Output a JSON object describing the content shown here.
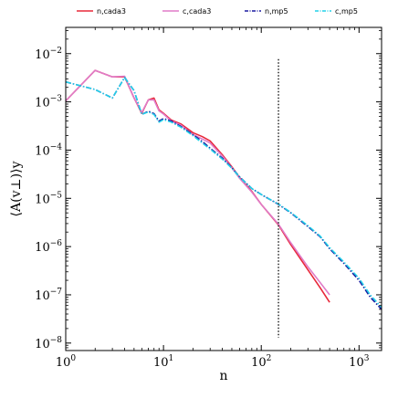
{
  "chart_data": {
    "type": "line",
    "xlabel": "n",
    "ylabel": "⟨A(v⊥)⟩y",
    "x_scale": "log",
    "y_scale": "log",
    "xlim": [
      1,
      1700
    ],
    "ylim": [
      7e-09,
      0.035
    ],
    "x_ticks": [
      1,
      10,
      100,
      1000
    ],
    "x_tick_labels": [
      "10^0",
      "10^1",
      "10^2",
      "10^3"
    ],
    "y_ticks": [
      1e-08,
      1e-07,
      1e-06,
      1e-05,
      0.0001,
      0.001,
      0.01
    ],
    "y_tick_labels": [
      "10^-8",
      "10^-7",
      "10^-6",
      "10^-5",
      "10^-4",
      "10^-3",
      "10^-2"
    ],
    "grid": false,
    "legend_position": "top",
    "vline": {
      "x": 150,
      "style": "dotted"
    },
    "series": [
      {
        "name": "n,cada3",
        "color": "#e8283a",
        "style": "solid",
        "x": [
          1,
          2,
          3,
          4,
          5,
          6,
          7,
          8,
          9,
          10,
          12,
          15,
          20,
          25,
          30,
          40,
          50,
          60,
          80,
          100,
          150,
          200,
          300,
          400,
          500
        ],
        "y": [
          0.00105,
          0.0045,
          0.0033,
          0.0033,
          0.0012,
          0.00058,
          0.0011,
          0.0012,
          0.00068,
          0.00058,
          0.00042,
          0.00035,
          0.00023,
          0.00019,
          0.000155,
          8e-05,
          4.5e-05,
          2.7e-05,
          1.4e-05,
          7.5e-06,
          2.8e-06,
          1.1e-06,
          3.3e-07,
          1.4e-07,
          7e-08
        ]
      },
      {
        "name": "c,cada3",
        "color": "#e07bc8",
        "style": "solid",
        "x": [
          1,
          2,
          3,
          4,
          5,
          6,
          7,
          8,
          9,
          10,
          12,
          15,
          20,
          25,
          30,
          40,
          50,
          60,
          80,
          100,
          150,
          200,
          300,
          400,
          500
        ],
        "y": [
          0.00105,
          0.0045,
          0.0033,
          0.0034,
          0.0012,
          0.0006,
          0.0011,
          0.0011,
          0.00065,
          0.00056,
          0.0004,
          0.00033,
          0.00021,
          0.00017,
          0.00014,
          7.5e-05,
          4.3e-05,
          2.6e-05,
          1.35e-05,
          7.5e-06,
          2.9e-06,
          1.2e-06,
          3.8e-07,
          1.8e-07,
          1e-07
        ]
      },
      {
        "name": "n,mp5",
        "color": "#1a1aa0",
        "style": "dashdot",
        "x": [
          1,
          2,
          3,
          4,
          5,
          6,
          7,
          8,
          9,
          10,
          12,
          15,
          20,
          25,
          30,
          40,
          50,
          60,
          80,
          100,
          150,
          200,
          300,
          400,
          500,
          700,
          1000,
          1300,
          1700
        ],
        "y": [
          0.0026,
          0.0018,
          0.0012,
          0.0032,
          0.0017,
          0.00055,
          0.00064,
          0.00057,
          0.0004,
          0.00045,
          0.0004,
          0.00031,
          0.00021,
          0.00015,
          0.00011,
          6.8e-05,
          4.3e-05,
          2.8e-05,
          1.6e-05,
          1.2e-05,
          7.5e-06,
          5e-06,
          2.6e-06,
          1.6e-06,
          9e-07,
          4.5e-07,
          2e-07,
          9e-08,
          5e-08
        ]
      },
      {
        "name": "c,mp5",
        "color": "#22d0e8",
        "style": "dashdot",
        "x": [
          1,
          2,
          3,
          4,
          5,
          6,
          7,
          8,
          9,
          10,
          12,
          15,
          20,
          25,
          30,
          40,
          50,
          60,
          80,
          100,
          150,
          200,
          300,
          400,
          500,
          700,
          1000,
          1300,
          1700
        ],
        "y": [
          0.0026,
          0.0018,
          0.0012,
          0.0032,
          0.0017,
          0.00055,
          0.00062,
          0.00055,
          0.00038,
          0.00043,
          0.00038,
          0.0003,
          0.0002,
          0.00014,
          0.000105,
          6.5e-05,
          4.2e-05,
          2.75e-05,
          1.6e-05,
          1.2e-05,
          7.6e-06,
          5.1e-06,
          2.7e-06,
          1.65e-06,
          9.5e-07,
          4.8e-07,
          2.2e-07,
          1e-07,
          5.5e-08
        ]
      }
    ]
  }
}
